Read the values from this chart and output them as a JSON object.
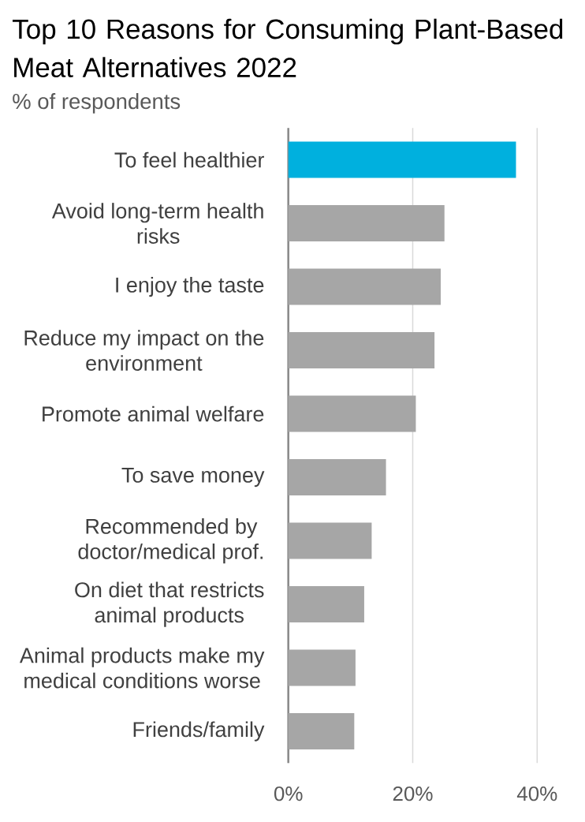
{
  "chart_data": {
    "type": "bar",
    "orientation": "horizontal",
    "title": "Top 10 Reasons for Consuming Plant-Based Meat Alternatives 2022",
    "subtitle": "% of respondents",
    "categories": [
      "To feel healthier",
      "Avoid long-term health risks",
      "I enjoy the taste",
      "Reduce my impact on the environment",
      "Promote animal welfare",
      "To save money",
      "Recommended by doctor/medical prof.",
      "On diet that restricts animal products",
      "Animal products make my medical conditions worse",
      "Friends/family"
    ],
    "values": [
      36.6,
      25.1,
      24.5,
      23.5,
      20.5,
      15.7,
      13.4,
      12.2,
      10.8,
      10.6
    ],
    "colors": [
      "#00b0de",
      "#a6a6a6",
      "#a6a6a6",
      "#a6a6a6",
      "#a6a6a6",
      "#a6a6a6",
      "#a6a6a6",
      "#a6a6a6",
      "#a6a6a6",
      "#a6a6a6"
    ],
    "xlim": [
      0,
      40
    ],
    "xticks": [
      {
        "value": 0,
        "label": "0%"
      },
      {
        "value": 20,
        "label": "20%"
      },
      {
        "value": 40,
        "label": "40%"
      }
    ],
    "grid": "x"
  }
}
